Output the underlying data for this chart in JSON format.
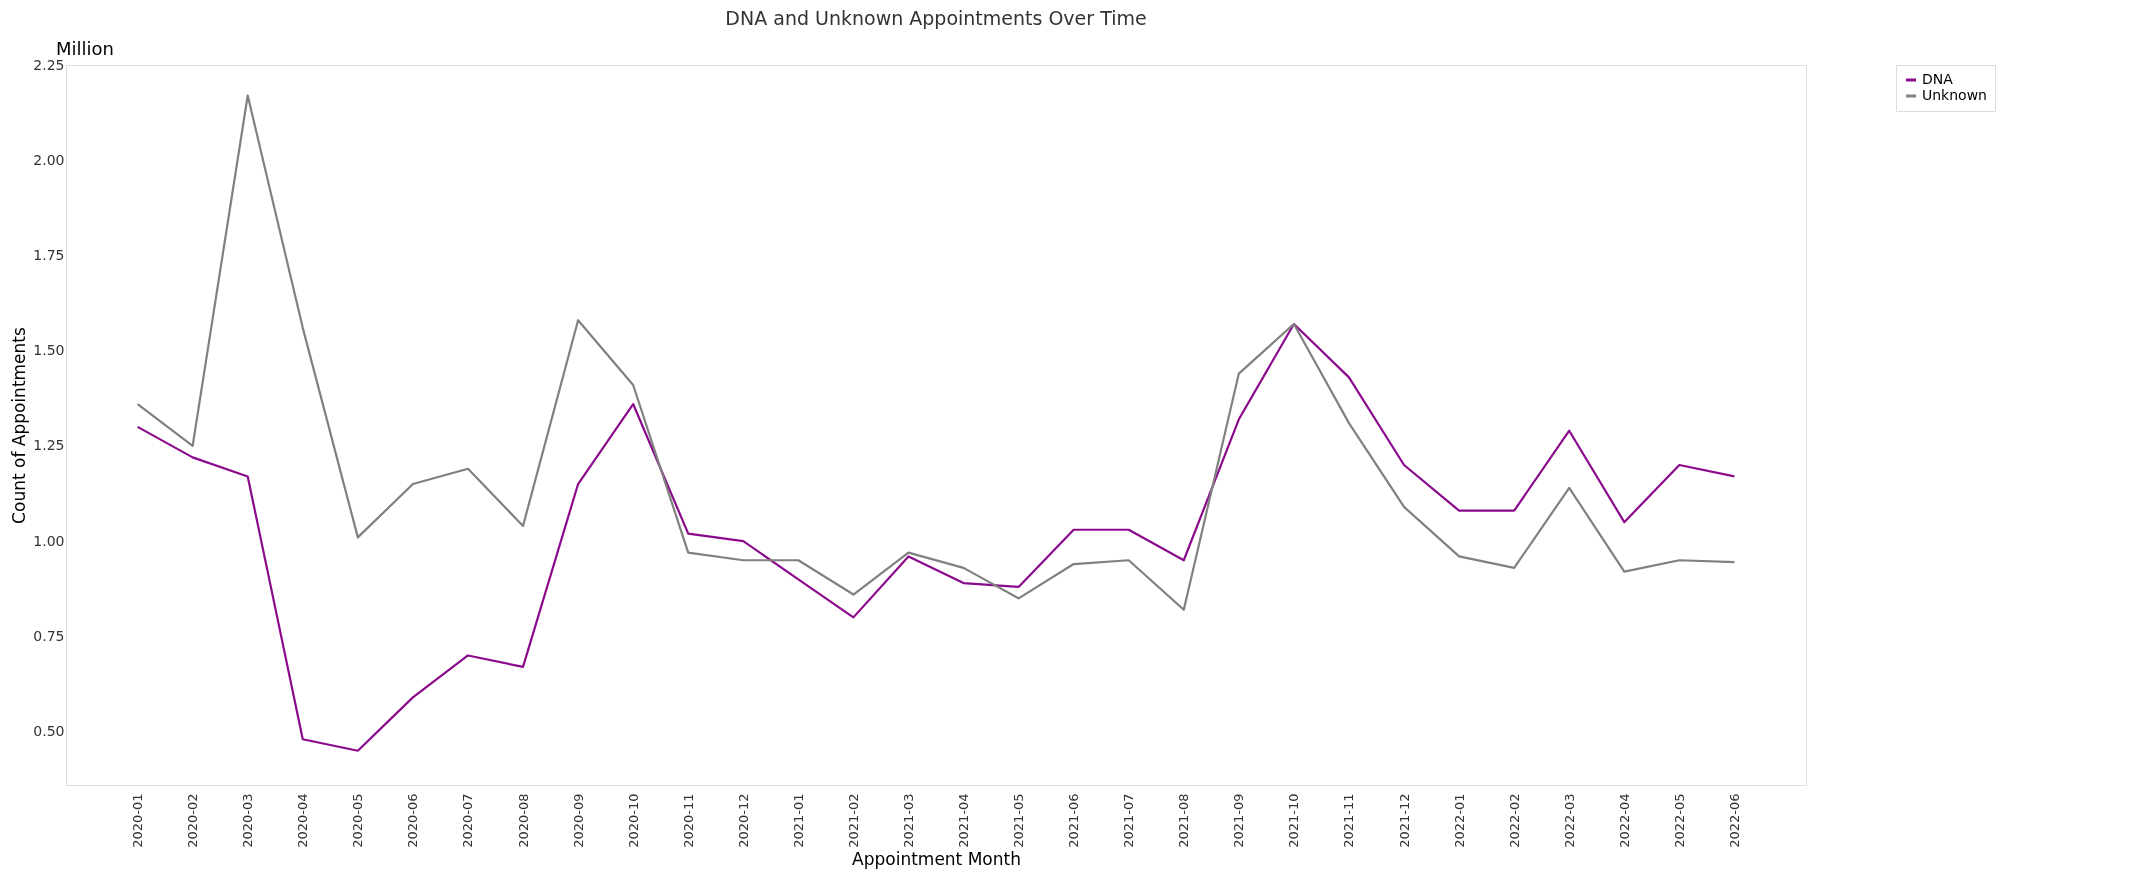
{
  "chart_data": {
    "type": "line",
    "title": "DNA and Unknown Appointments Over Time",
    "xlabel": "Appointment Month",
    "ylabel": "Count of Appointments",
    "annotations": [
      "Million"
    ],
    "categories": [
      "2020-01",
      "2020-02",
      "2020-03",
      "2020-04",
      "2020-05",
      "2020-06",
      "2020-07",
      "2020-08",
      "2020-09",
      "2020-10",
      "2020-11",
      "2020-12",
      "2021-01",
      "2021-02",
      "2021-03",
      "2021-04",
      "2021-05",
      "2021-06",
      "2021-07",
      "2021-08",
      "2021-09",
      "2021-10",
      "2021-11",
      "2021-12",
      "2022-01",
      "2022-02",
      "2022-03",
      "2022-04",
      "2022-05",
      "2022-06"
    ],
    "series": [
      {
        "name": "DNA",
        "color": "#8b0a8b",
        "values": [
          1.3,
          1.22,
          1.17,
          0.48,
          0.45,
          0.59,
          0.7,
          0.67,
          1.15,
          1.36,
          1.02,
          1.0,
          0.9,
          0.8,
          0.96,
          0.89,
          0.88,
          1.03,
          1.03,
          0.95,
          1.32,
          1.57,
          1.43,
          1.2,
          1.08,
          1.08,
          1.29,
          1.05,
          1.2,
          1.17
        ]
      },
      {
        "name": "Unknown",
        "color": "#808080",
        "values": [
          1.36,
          1.25,
          2.17,
          1.56,
          1.01,
          1.15,
          1.19,
          1.04,
          1.58,
          1.41,
          0.97,
          0.95,
          0.95,
          0.86,
          0.97,
          0.93,
          0.85,
          0.94,
          0.95,
          0.82,
          1.44,
          1.57,
          1.31,
          1.09,
          0.96,
          0.93,
          1.14,
          0.92,
          0.95,
          0.945
        ]
      }
    ],
    "ylim": [
      0.36,
      2.25
    ],
    "yticks": [
      {
        "value": 0.5,
        "label": "0.50"
      },
      {
        "value": 0.75,
        "label": "0.75"
      },
      {
        "value": 1.0,
        "label": "1.00"
      },
      {
        "value": 1.25,
        "label": "1.25"
      },
      {
        "value": 1.5,
        "label": "1.50"
      },
      {
        "value": 1.75,
        "label": "1.75"
      },
      {
        "value": 2.0,
        "label": "2.00"
      },
      {
        "value": 2.25,
        "label": "2.25"
      }
    ],
    "grid": false,
    "legend": "top right",
    "line_style": "solid"
  }
}
